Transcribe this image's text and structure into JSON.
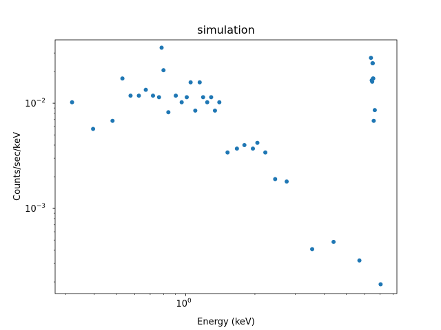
{
  "chart_data": {
    "type": "scatter",
    "title": "simulation",
    "xlabel": "Energy (keV)",
    "ylabel": "Counts/sec/keV",
    "xscale": "log",
    "yscale": "log",
    "xlim": [
      0.27,
      8.3
    ],
    "ylim": [
      0.000155,
      0.04
    ],
    "grid": false,
    "marker_color": "#1f77b4",
    "x_major_ticks": [
      {
        "value": 1.0,
        "label": "10^0"
      }
    ],
    "y_major_ticks": [
      {
        "value": 0.01,
        "label": "10^-2"
      },
      {
        "value": 0.001,
        "label": "10^-3"
      }
    ],
    "x_minor_ticks": [
      0.3,
      0.4,
      0.5,
      0.6,
      0.7,
      0.8,
      0.9,
      2,
      3,
      4,
      5,
      6,
      7,
      8
    ],
    "y_minor_ticks": [
      0.0002,
      0.0003,
      0.0004,
      0.0005,
      0.0006,
      0.0007,
      0.0008,
      0.0009,
      0.002,
      0.003,
      0.004,
      0.005,
      0.006,
      0.007,
      0.008,
      0.009,
      0.02,
      0.03
    ],
    "series": [
      {
        "points": [
          [
            0.32,
            0.0102
          ],
          [
            0.395,
            0.0057
          ],
          [
            0.48,
            0.0068
          ],
          [
            0.53,
            0.0172
          ],
          [
            0.575,
            0.0118
          ],
          [
            0.625,
            0.0118
          ],
          [
            0.67,
            0.0134
          ],
          [
            0.72,
            0.0118
          ],
          [
            0.765,
            0.0114
          ],
          [
            0.785,
            0.0337
          ],
          [
            0.8,
            0.0206
          ],
          [
            0.84,
            0.0082
          ],
          [
            0.905,
            0.0118
          ],
          [
            0.96,
            0.0102
          ],
          [
            1.01,
            0.0114
          ],
          [
            1.05,
            0.0158
          ],
          [
            1.1,
            0.0085
          ],
          [
            1.15,
            0.0158
          ],
          [
            1.19,
            0.0114
          ],
          [
            1.24,
            0.0102
          ],
          [
            1.29,
            0.0114
          ],
          [
            1.34,
            0.0085
          ],
          [
            1.4,
            0.0102
          ],
          [
            1.52,
            0.0034
          ],
          [
            1.67,
            0.0037
          ],
          [
            1.8,
            0.004
          ],
          [
            1.96,
            0.0037
          ],
          [
            2.05,
            0.0042
          ],
          [
            2.22,
            0.0034
          ],
          [
            2.45,
            0.0019
          ],
          [
            2.75,
            0.0018
          ],
          [
            3.55,
            0.00041
          ],
          [
            4.4,
            0.00048
          ],
          [
            5.7,
            0.00032
          ],
          [
            6.4,
            0.027
          ],
          [
            6.45,
            0.0165
          ],
          [
            6.48,
            0.016
          ],
          [
            6.5,
            0.024
          ],
          [
            6.52,
            0.024
          ],
          [
            6.53,
            0.0172
          ],
          [
            6.55,
            0.0172
          ],
          [
            6.58,
            0.0068
          ],
          [
            6.65,
            0.0086
          ],
          [
            7.05,
            0.00019
          ]
        ]
      }
    ]
  }
}
